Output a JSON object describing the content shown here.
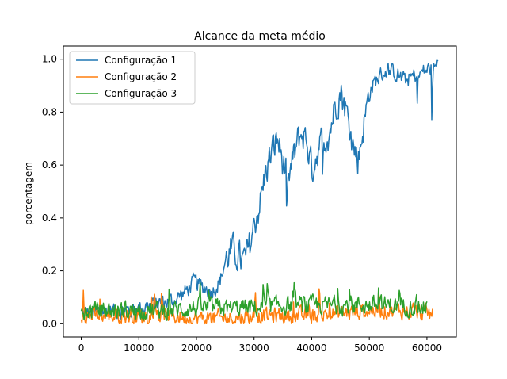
{
  "chart_data": {
    "type": "line",
    "title": "Alcance da meta médio",
    "xlabel": "",
    "ylabel": "porcentagem",
    "xlim": [
      -3100,
      65100
    ],
    "ylim": [
      -0.05,
      1.05
    ],
    "xticks": [
      0,
      10000,
      20000,
      30000,
      40000,
      50000,
      60000
    ],
    "xtick_labels": [
      "0",
      "10000",
      "20000",
      "30000",
      "40000",
      "50000",
      "60000"
    ],
    "yticks": [
      0.0,
      0.2,
      0.4,
      0.6,
      0.8,
      1.0
    ],
    "ytick_labels": [
      "0.0",
      "0.2",
      "0.4",
      "0.6",
      "0.8",
      "1.0"
    ],
    "grid": false,
    "legend_position": "top-left",
    "series": [
      {
        "name": "Configuração 1",
        "color": "#1f77b4",
        "x": [
          0,
          2000,
          4000,
          6000,
          8000,
          10000,
          12000,
          14000,
          16000,
          18000,
          19500,
          21000,
          22500,
          24000,
          25000,
          26000,
          27000,
          28000,
          29000,
          30000,
          31000,
          32000,
          33000,
          34000,
          35000,
          36000,
          37000,
          38000,
          39000,
          40000,
          41000,
          42000,
          43000,
          44000,
          45000,
          46000,
          47000,
          48000,
          49000,
          50000,
          51000,
          52000,
          53000,
          54000,
          55000,
          56000,
          57000,
          58000,
          59000,
          60000,
          61000,
          62000
        ],
        "y": [
          0.04,
          0.04,
          0.05,
          0.05,
          0.05,
          0.06,
          0.07,
          0.08,
          0.09,
          0.12,
          0.16,
          0.14,
          0.12,
          0.16,
          0.24,
          0.28,
          0.26,
          0.23,
          0.28,
          0.38,
          0.46,
          0.58,
          0.65,
          0.7,
          0.6,
          0.55,
          0.65,
          0.72,
          0.7,
          0.58,
          0.66,
          0.7,
          0.72,
          0.83,
          0.88,
          0.8,
          0.68,
          0.62,
          0.76,
          0.88,
          0.92,
          0.94,
          0.96,
          0.95,
          0.94,
          0.92,
          0.93,
          0.94,
          0.95,
          0.96,
          0.97,
          0.98
        ]
      },
      {
        "name": "Configuração 2",
        "color": "#ff7f0e",
        "x": [
          0,
          5000,
          10000,
          15000,
          20000,
          25000,
          30000,
          35000,
          40000,
          45000,
          50000,
          55000,
          60000,
          61000
        ],
        "y": [
          0.03,
          0.03,
          0.03,
          0.03,
          0.02,
          0.02,
          0.03,
          0.03,
          0.03,
          0.04,
          0.05,
          0.05,
          0.04,
          0.03
        ]
      },
      {
        "name": "Configuração 3",
        "color": "#2ca02c",
        "x": [
          0,
          5000,
          10000,
          15000,
          20000,
          25000,
          30000,
          35000,
          40000,
          45000,
          50000,
          55000,
          60000
        ],
        "y": [
          0.05,
          0.05,
          0.05,
          0.05,
          0.06,
          0.06,
          0.06,
          0.07,
          0.07,
          0.07,
          0.07,
          0.07,
          0.06
        ]
      }
    ]
  }
}
